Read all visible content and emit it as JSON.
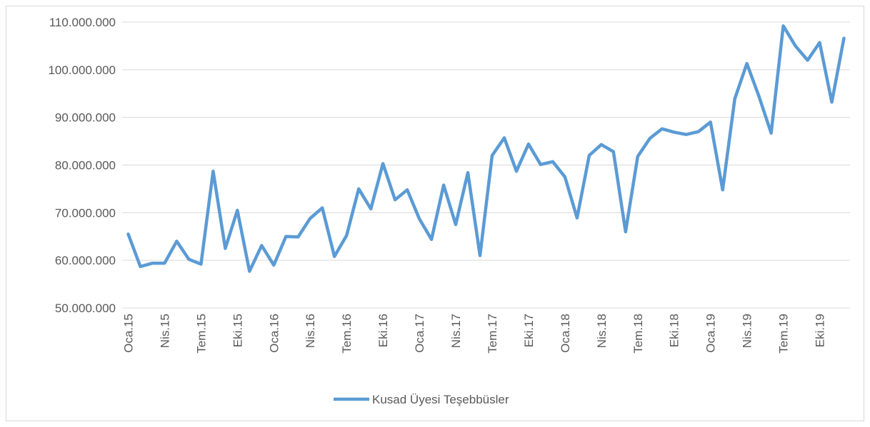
{
  "chart_data": {
    "type": "line",
    "categories": [
      "Oca.15",
      null,
      null,
      "Nis.15",
      null,
      null,
      "Tem.15",
      null,
      null,
      "Eki.15",
      null,
      null,
      "Oca.16",
      null,
      null,
      "Nis.16",
      null,
      null,
      "Tem.16",
      null,
      null,
      "Eki.16",
      null,
      null,
      "Oca.17",
      null,
      null,
      "Nis.17",
      null,
      null,
      "Tem.17",
      null,
      null,
      "Eki.17",
      null,
      null,
      "Oca.18",
      null,
      null,
      "Nis.18",
      null,
      null,
      "Tem.18",
      null,
      null,
      "Eki.18",
      null,
      null,
      "Oca.19",
      null,
      null,
      "Nis.19",
      null,
      null,
      "Tem.19",
      null,
      null,
      "Eki.19",
      null,
      null
    ],
    "series": [
      {
        "name": "Kusad Üyesi Teşebbüsler",
        "color": "#5b9bd5",
        "values": [
          65500000,
          58700000,
          59400000,
          59400000,
          64000000,
          60200000,
          59200000,
          78700000,
          62500000,
          70500000,
          57700000,
          63100000,
          59000000,
          65000000,
          64900000,
          68800000,
          71000000,
          60800000,
          65200000,
          75000000,
          70800000,
          80300000,
          72700000,
          74800000,
          68700000,
          64400000,
          75800000,
          67500000,
          78400000,
          61000000,
          82000000,
          85700000,
          78700000,
          84400000,
          80100000,
          80700000,
          77500000,
          68900000,
          82000000,
          84300000,
          82800000,
          66000000,
          81800000,
          85600000,
          87600000,
          86900000,
          86400000,
          87000000,
          89000000,
          74800000,
          93900000,
          101300000,
          94400000,
          86700000,
          109200000,
          105000000,
          102000000,
          105700000,
          93200000,
          106600000
        ]
      }
    ],
    "ylim": [
      50000000,
      110000000
    ],
    "yticks": [
      {
        "value": 50000000,
        "label": "50.000.000"
      },
      {
        "value": 60000000,
        "label": "60.000.000"
      },
      {
        "value": 70000000,
        "label": "70.000.000"
      },
      {
        "value": 80000000,
        "label": "80.000.000"
      },
      {
        "value": 90000000,
        "label": "90.000.000"
      },
      {
        "value": 100000000,
        "label": "100.000.000"
      },
      {
        "value": 110000000,
        "label": "110.000.000"
      }
    ],
    "grid": true,
    "legend": "bottom"
  }
}
